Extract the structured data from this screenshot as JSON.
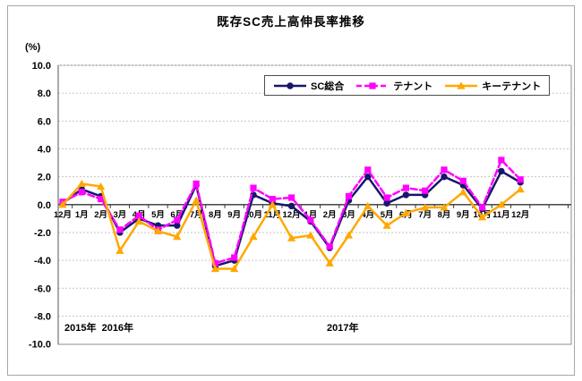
{
  "chart_data": {
    "type": "line",
    "title": "既存SC売上高伸長率推移",
    "y_unit_label": "(%)",
    "ylim": [
      -10.0,
      10.0
    ],
    "ytick_step": 2.0,
    "ytick_labels": [
      "10.0",
      "8.0",
      "6.0",
      "4.0",
      "2.0",
      "0.0",
      "-2.0",
      "-4.0",
      "-6.0",
      "-8.0",
      "-10.0"
    ],
    "grid": true,
    "legend_position": "top-center-inside",
    "categories": [
      "12月",
      "1月",
      "2月",
      "3月",
      "4月",
      "5月",
      "6月",
      "7月",
      "8月",
      "9月",
      "10月",
      "11月",
      "12月",
      "1月",
      "2月",
      "3月",
      "4月",
      "5月",
      "6月",
      "7月",
      "8月",
      "9月",
      "10月",
      "11月",
      "12月"
    ],
    "year_labels": [
      {
        "text": "2015年  2016年"
      },
      {
        "text": "2017年"
      }
    ],
    "series": [
      {
        "id": "sc-total",
        "name": "SC総合",
        "color": "#16166b",
        "line_style": "solid",
        "marker": "circle",
        "values": [
          0.1,
          1.1,
          0.6,
          -2.0,
          -1.0,
          -1.5,
          -1.5,
          1.4,
          -4.4,
          -4.0,
          0.7,
          0.1,
          -0.1,
          -1.2,
          -3.1,
          0.3,
          2.0,
          0.1,
          0.7,
          0.7,
          2.0,
          1.4,
          -0.3,
          2.4,
          1.6
        ]
      },
      {
        "id": "tenant",
        "name": "テナント",
        "color": "#ff00ff",
        "line_style": "dashed",
        "marker": "square",
        "values": [
          0.2,
          0.9,
          0.4,
          -1.8,
          -0.8,
          -1.8,
          -1.1,
          1.5,
          -4.2,
          -3.8,
          1.2,
          0.4,
          0.5,
          -1.1,
          -3.0,
          0.6,
          2.5,
          0.5,
          1.2,
          1.0,
          2.5,
          1.7,
          -0.2,
          3.2,
          1.8
        ]
      },
      {
        "id": "key-tenant",
        "name": "キーテナント",
        "color": "#ffa800",
        "line_style": "solid",
        "marker": "triangle",
        "values": [
          0.0,
          1.5,
          1.3,
          -3.3,
          -1.2,
          -1.9,
          -2.3,
          0.3,
          -4.6,
          -4.6,
          -2.3,
          0.0,
          -2.4,
          -2.2,
          -4.2,
          -2.2,
          -0.1,
          -1.5,
          -0.6,
          -0.2,
          -0.2,
          0.9,
          -0.9,
          0.0,
          1.1
        ]
      }
    ],
    "colors": {
      "gridline": "#c6c6c6",
      "zero_axis": "#333333",
      "plot_border": "#8c8c8c"
    }
  }
}
